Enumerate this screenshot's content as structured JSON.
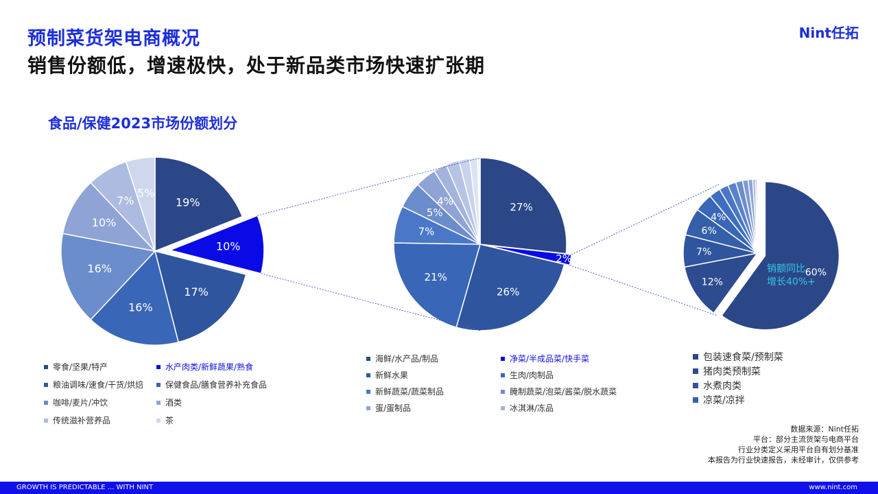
{
  "header": {
    "title": "预制菜货架电商概况",
    "subtitle": "销售份额低，增速极快，处于新品类市场快速扩张期",
    "logo": "Nint任拓"
  },
  "section_title": "食品/保健2023市场份额划分",
  "chart_data": [
    {
      "type": "pie",
      "categories": [
        "零食/坚果/特产",
        "水产肉类/新鲜蔬果/熟食",
        "粮油调味/速食/干货/烘焙",
        "保健食品/膳食营养补充食品",
        "咖啡/麦片/冲饮",
        "酒类",
        "传统滋补营养品",
        "茶"
      ],
      "values": [
        19,
        10,
        17,
        16,
        16,
        10,
        7,
        5
      ],
      "labels": [
        "19%",
        "10%",
        "17%",
        "16%",
        "16%",
        "10%",
        "7%",
        "5%"
      ],
      "highlight_index": 1,
      "colors": [
        "#2c4787",
        "#0a0ae6",
        "#2f559e",
        "#3a66b7",
        "#6b8dcb",
        "#8fa4d4",
        "#adbbe0",
        "#cfd7ee"
      ]
    },
    {
      "type": "pie",
      "categories": [
        "海鲜/水产品/制品",
        "净菜/半成品菜/快手菜",
        "新鲜水果",
        "生肉/肉制品",
        "新鲜蔬菜/蔬菜制品",
        "腌制蔬菜/泡菜/酱菜/脱水蔬菜",
        "蛋/蛋制品",
        "冰淇淋/冻品"
      ],
      "values": [
        27,
        2,
        26,
        21,
        7,
        5,
        4,
        2.5,
        2.5,
        2,
        1.5,
        0.5
      ],
      "labels": [
        "27%",
        "2%",
        "26%",
        "21%",
        "7%",
        "5%",
        "4%",
        "",
        "",
        "",
        "",
        ""
      ],
      "highlight_index": 1,
      "colors": [
        "#2c4787",
        "#0a0ae6",
        "#2f559e",
        "#3a66b7",
        "#4a77c7",
        "#6b8dcb",
        "#8fa4d4",
        "#a3b3dc",
        "#b6c3e4",
        "#c9d3ec",
        "#dce3f3",
        "#eef1f9"
      ]
    },
    {
      "type": "pie",
      "categories": [
        "包装速食菜/预制菜",
        "猪肉类预制菜",
        "水煮肉类",
        "凉菜/凉拌"
      ],
      "values": [
        60,
        12,
        7,
        6,
        4,
        2.5,
        2,
        1.8,
        1.5,
        1.2,
        1,
        0.6,
        0.4
      ],
      "labels": [
        "60%",
        "12%",
        "7%",
        "6%",
        "4%",
        "",
        "",
        "",
        "",
        "",
        "",
        "",
        ""
      ],
      "highlight_index": 0,
      "colors": [
        "#2c4787",
        "#2d4c8f",
        "#2f559e",
        "#3460aa",
        "#3a66b7",
        "#3f6dbf",
        "#4a77c7",
        "#5a82cb",
        "#6b8dcb",
        "#7f9bd2",
        "#8fa4d4",
        "#a3b3dc",
        "#b6c3e4"
      ],
      "annotation": [
        "销额同比",
        "增长40%+"
      ],
      "annotation_color": "#33c6e8"
    }
  ],
  "legend1": [
    {
      "label": "零食/坚果/特产",
      "color": "#2c4787",
      "hl": false
    },
    {
      "label": "水产肉类/新鲜蔬果/熟食",
      "color": "#0a0ae6",
      "hl": true
    },
    {
      "label": "粮油调味/速食/干货/烘焙",
      "color": "#2f559e",
      "hl": false
    },
    {
      "label": "保健食品/膳食营养补充食品",
      "color": "#3a66b7",
      "hl": false
    },
    {
      "label": "咖啡/麦片/冲饮",
      "color": "#6b8dcb",
      "hl": false
    },
    {
      "label": "酒类",
      "color": "#8fa4d4",
      "hl": false
    },
    {
      "label": "传统滋补营养品",
      "color": "#adbbe0",
      "hl": false
    },
    {
      "label": "茶",
      "color": "#cfd7ee",
      "hl": false
    }
  ],
  "legend2": [
    {
      "label": "海鲜/水产品/制品",
      "color": "#2c4787",
      "hl": false
    },
    {
      "label": "净菜/半成品菜/快手菜",
      "color": "#0a0ae6",
      "hl": true
    },
    {
      "label": "新鲜水果",
      "color": "#2f559e",
      "hl": false
    },
    {
      "label": "生肉/肉制品",
      "color": "#3a66b7",
      "hl": false
    },
    {
      "label": "新鲜蔬菜/蔬菜制品",
      "color": "#4a77c7",
      "hl": false
    },
    {
      "label": "腌制蔬菜/泡菜/酱菜/脱水蔬菜",
      "color": "#6b8dcb",
      "hl": false
    },
    {
      "label": "蛋/蛋制品",
      "color": "#8fa4d4",
      "hl": false
    },
    {
      "label": "冰淇淋/冻品",
      "color": "#a3b3dc",
      "hl": false
    }
  ],
  "legend3": [
    {
      "label": "包装速食菜/预制菜",
      "color": "#2c4787",
      "hl": false
    },
    {
      "label": "猪肉类预制菜",
      "color": "#2d4c8f",
      "hl": false
    },
    {
      "label": "水煮肉类",
      "color": "#2f559e",
      "hl": false
    },
    {
      "label": "凉菜/凉拌",
      "color": "#3460aa",
      "hl": false
    }
  ],
  "sources": {
    "line1": "数据来源：Nint任拓",
    "line2": "平台：部分主流货架与电商平台",
    "line3": "行业分类定义采用平台自有划分基准",
    "line4": "本报告为行业快速报告，未经审计，仅供参考"
  },
  "footer": {
    "left": "GROWTH IS PREDICTABLE ... WITH NINT",
    "right": "www.nint.com"
  }
}
